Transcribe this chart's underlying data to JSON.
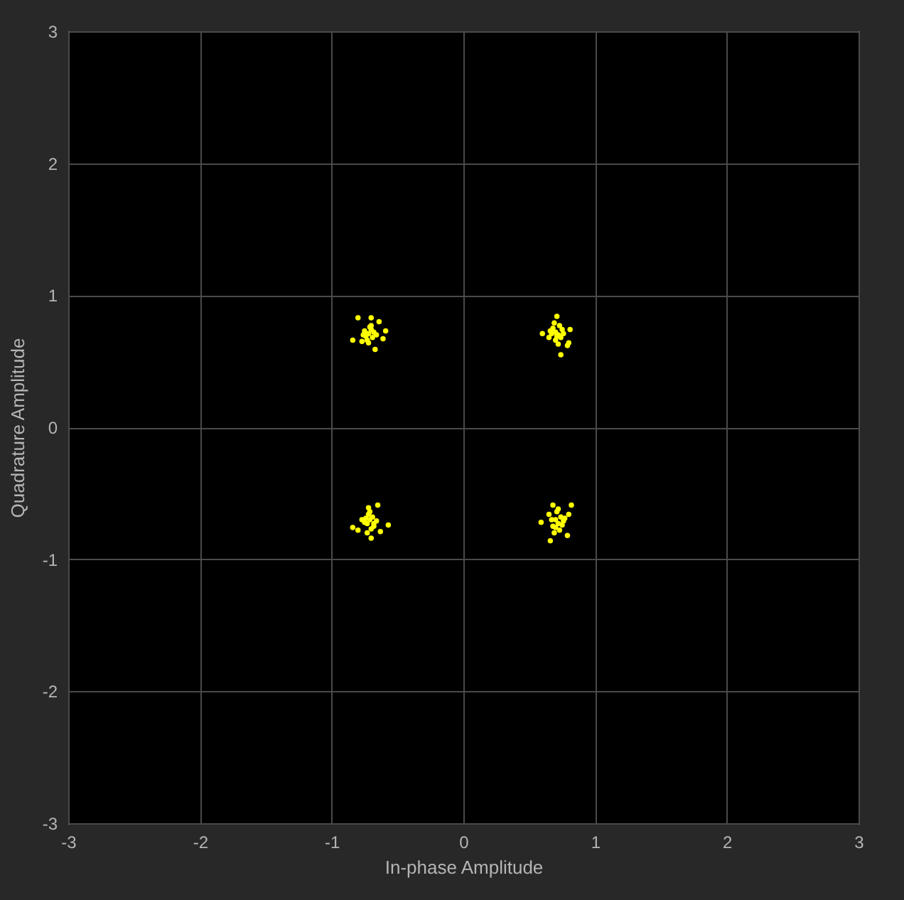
{
  "chart_data": {
    "type": "scatter",
    "xlabel": "In-phase Amplitude",
    "ylabel": "Quadrature Amplitude",
    "xlim": [
      -3,
      3
    ],
    "ylim": [
      -3,
      3
    ],
    "xticks": [
      -3,
      -2,
      -1,
      0,
      1,
      2,
      3
    ],
    "yticks": [
      -3,
      -2,
      -1,
      0,
      1,
      2,
      3
    ],
    "grid": true,
    "marker": "circle",
    "series": [
      {
        "color": "#ffff00",
        "x": [
          -0.8,
          -0.7,
          -0.64,
          -0.84,
          -0.77,
          -0.67,
          -0.59,
          -0.61,
          -0.72,
          -0.7,
          -0.74,
          -0.68,
          -0.71,
          -0.75,
          -0.69,
          -0.73,
          -0.66,
          -0.72,
          -0.7,
          -0.76,
          0.71,
          0.6,
          0.81,
          0.74,
          0.79,
          0.8,
          0.7,
          0.72,
          0.68,
          0.74,
          0.66,
          0.73,
          0.7,
          0.76,
          0.69,
          0.71,
          0.65,
          0.75,
          0.72,
          0.67,
          -0.65,
          -0.84,
          -0.57,
          -0.7,
          -0.72,
          -0.8,
          -0.71,
          -0.73,
          -0.69,
          -0.75,
          -0.68,
          -0.72,
          -0.66,
          -0.74,
          -0.7,
          -0.77,
          -0.63,
          -0.71,
          -0.73,
          -0.68,
          0.68,
          0.82,
          0.59,
          0.66,
          0.79,
          0.8,
          0.7,
          0.72,
          0.74,
          0.68,
          0.71,
          0.76,
          0.65,
          0.73,
          0.69,
          0.75,
          0.67,
          0.72,
          0.7,
          0.77
        ],
        "values": [
          0.83,
          0.83,
          0.8,
          0.66,
          0.65,
          0.59,
          0.73,
          0.67,
          0.71,
          0.74,
          0.69,
          0.72,
          0.76,
          0.73,
          0.68,
          0.66,
          0.7,
          0.64,
          0.77,
          0.7,
          0.84,
          0.71,
          0.74,
          0.55,
          0.62,
          0.64,
          0.72,
          0.7,
          0.75,
          0.68,
          0.73,
          0.77,
          0.66,
          0.71,
          0.79,
          0.69,
          0.68,
          0.74,
          0.63,
          0.71,
          -0.59,
          -0.76,
          -0.74,
          -0.84,
          -0.61,
          -0.78,
          -0.7,
          -0.73,
          -0.68,
          -0.72,
          -0.75,
          -0.66,
          -0.71,
          -0.69,
          -0.77,
          -0.7,
          -0.79,
          -0.64,
          -0.8,
          -0.73,
          -0.59,
          -0.59,
          -0.72,
          -0.86,
          -0.82,
          -0.66,
          -0.7,
          -0.73,
          -0.68,
          -0.75,
          -0.64,
          -0.71,
          -0.66,
          -0.78,
          -0.8,
          -0.74,
          -0.7,
          -0.62,
          -0.76,
          -0.69
        ]
      }
    ]
  }
}
